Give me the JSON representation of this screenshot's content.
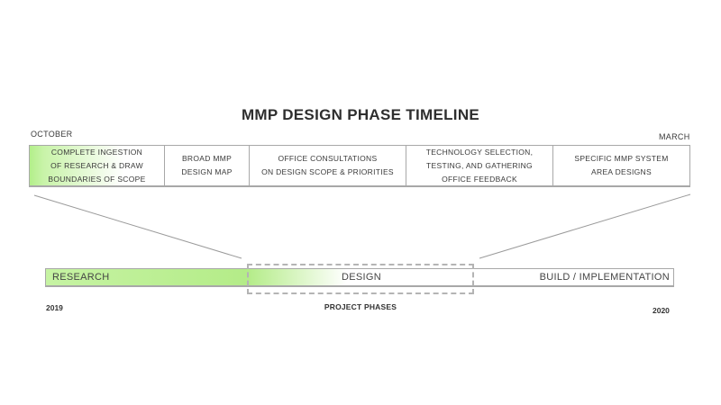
{
  "title": "MMP DESIGN PHASE TIMELINE",
  "timeline": {
    "start_month": "OCTOBER",
    "end_month": "MARCH",
    "tasks": [
      {
        "label": "COMPLETE INGESTION\nOF RESEARCH & DRAW\nBOUNDARIES OF SCOPE",
        "highlighted": true
      },
      {
        "label": "BROAD MMP\nDESIGN MAP",
        "highlighted": false
      },
      {
        "label": "OFFICE CONSULTATIONS\nON DESIGN SCOPE & PRIORITIES",
        "highlighted": false
      },
      {
        "label": "TECHNOLOGY SELECTION,\nTESTING, AND GATHERING\nOFFICE FEEDBACK",
        "highlighted": false
      },
      {
        "label": "SPECIFIC MMP SYSTEM\nAREA DESIGNS",
        "highlighted": false
      }
    ]
  },
  "phases": {
    "items": [
      {
        "label": "RESEARCH"
      },
      {
        "label": "DESIGN"
      },
      {
        "label": "BUILD / IMPLEMENTATION"
      }
    ],
    "start_year": "2019",
    "end_year": "2020",
    "caption": "PROJECT PHASES"
  },
  "colors": {
    "highlight_green": "#b4ec88",
    "border_gray": "#a8a8a8",
    "text_dark": "#333333"
  }
}
